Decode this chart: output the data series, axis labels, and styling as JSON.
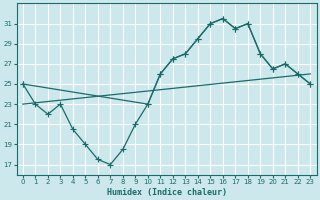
{
  "xlabel": "Humidex (Indice chaleur)",
  "bg_color": "#cce8ec",
  "grid_color": "#ffffff",
  "line_color": "#1a6b6b",
  "xlim": [
    -0.5,
    23.5
  ],
  "ylim": [
    16,
    33
  ],
  "xticks": [
    0,
    1,
    2,
    3,
    4,
    5,
    6,
    7,
    8,
    9,
    10,
    11,
    12,
    13,
    14,
    15,
    16,
    17,
    18,
    19,
    20,
    21,
    22,
    23
  ],
  "yticks": [
    17,
    19,
    21,
    23,
    25,
    27,
    29,
    31
  ],
  "line1_x": [
    0,
    1,
    2,
    3,
    4,
    5,
    6,
    7,
    8,
    9,
    10,
    11,
    12,
    13,
    14,
    15,
    16,
    17,
    18,
    19,
    20,
    21,
    22,
    23
  ],
  "line1_y": [
    25,
    23,
    22,
    23,
    20.5,
    19,
    17.5,
    17,
    18.5,
    21,
    23,
    26,
    27.5,
    28,
    29.5,
    31,
    31.5,
    30.5,
    31,
    28,
    26.5,
    27,
    26,
    25
  ],
  "line2_x": [
    0,
    23
  ],
  "line2_y": [
    23,
    26
  ],
  "line3_x": [
    0,
    10,
    11,
    12,
    13,
    14,
    15,
    16,
    17,
    18,
    19,
    20,
    21,
    22,
    23
  ],
  "line3_y": [
    25,
    23,
    26,
    27.5,
    28,
    29.5,
    31,
    31.5,
    30.5,
    31,
    28,
    26.5,
    27,
    26,
    25
  ]
}
